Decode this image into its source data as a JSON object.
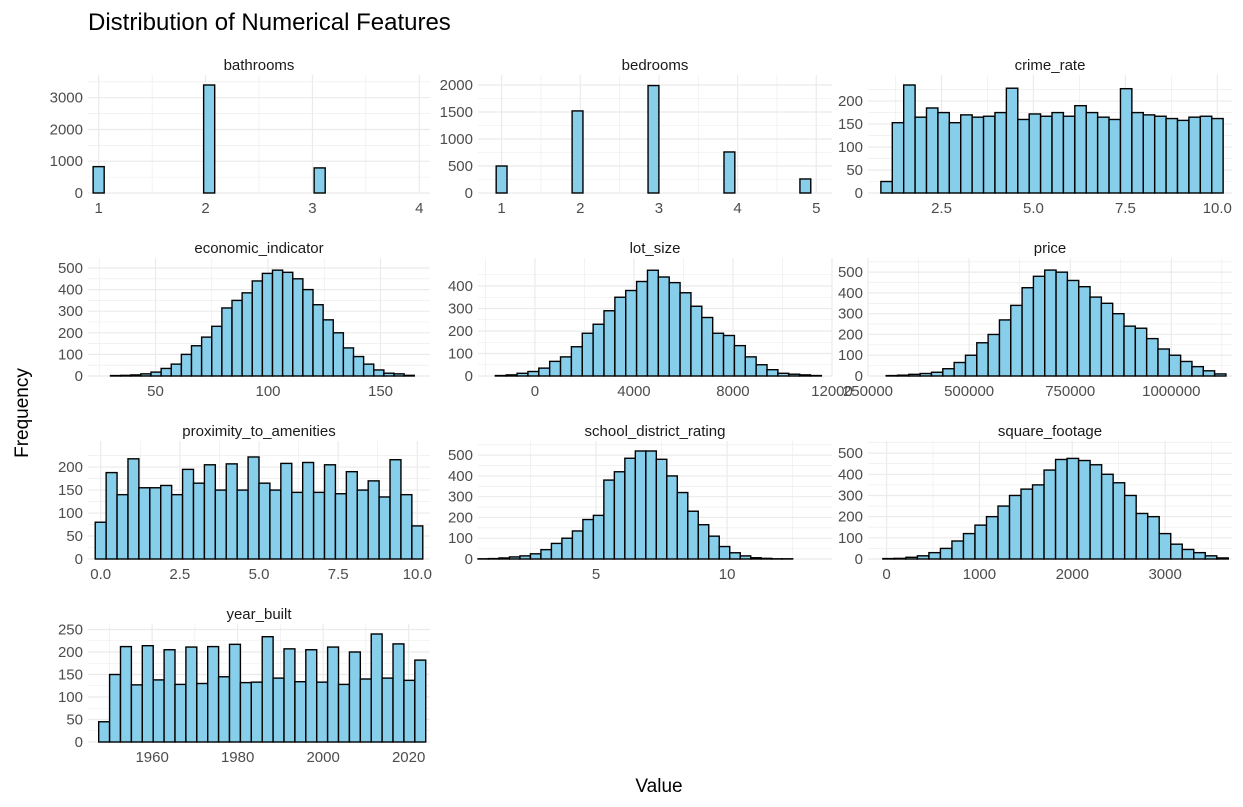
{
  "title": "Distribution of Numerical Features",
  "xlabel": "Value",
  "ylabel": "Frequency",
  "style": {
    "bar_fill": "#87CEEB",
    "bar_stroke": "#000000",
    "grid": "#ebebeb"
  },
  "chart_data": {
    "type": "bar",
    "subtype": "faceted-histogram",
    "grid": true,
    "bins_per_panel": 30,
    "panels": [
      {
        "name": "bathrooms",
        "xlim": [
          0.9,
          4.1
        ],
        "ylim": [
          0,
          3400
        ],
        "xticks": [
          1,
          2,
          3,
          4
        ],
        "xtick_labels": [
          "1",
          "2",
          "3",
          "4"
        ],
        "yticks": [
          0,
          1000,
          2000,
          3000
        ],
        "ytick_labels": [
          "0",
          "1000",
          "2000",
          "3000"
        ],
        "bin_start": 0.948,
        "bin_width": 0.1034,
        "counts": [
          830,
          0,
          0,
          0,
          0,
          0,
          0,
          0,
          0,
          0,
          3400,
          0,
          0,
          0,
          0,
          0,
          0,
          0,
          0,
          0,
          790,
          0,
          0,
          0,
          0,
          0,
          0,
          0,
          0,
          0
        ]
      },
      {
        "name": "bedrooms",
        "xlim": [
          0.7,
          5.2
        ],
        "ylim": [
          0,
          2000
        ],
        "xticks": [
          1,
          2,
          3,
          4,
          5
        ],
        "xtick_labels": [
          "1",
          "2",
          "3",
          "4",
          "5"
        ],
        "yticks": [
          0,
          500,
          1000,
          1500,
          2000
        ],
        "ytick_labels": [
          "0",
          "500",
          "1000",
          "1500",
          "2000"
        ],
        "bin_start": 0.931,
        "bin_width": 0.1379,
        "counts": [
          500,
          0,
          0,
          0,
          0,
          0,
          0,
          1520,
          0,
          0,
          0,
          0,
          0,
          0,
          1990,
          0,
          0,
          0,
          0,
          0,
          0,
          760,
          0,
          0,
          0,
          0,
          0,
          0,
          260,
          0
        ]
      },
      {
        "name": "crime_rate",
        "xlim": [
          0.5,
          10.4
        ],
        "ylim": [
          0,
          235
        ],
        "xticks": [
          2.5,
          5,
          7.5,
          10
        ],
        "xtick_labels": [
          "2.5",
          "5.0",
          "7.5",
          "10.0"
        ],
        "yticks": [
          0,
          50,
          100,
          150,
          200
        ],
        "ytick_labels": [
          "0",
          "50",
          "100",
          "150",
          "200"
        ],
        "bin_start": 0.85,
        "bin_width": 0.3103,
        "counts": [
          25,
          153,
          235,
          165,
          185,
          175,
          153,
          170,
          165,
          167,
          175,
          228,
          160,
          172,
          167,
          175,
          167,
          190,
          175,
          165,
          160,
          227,
          175,
          170,
          167,
          162,
          158,
          165,
          167,
          162
        ]
      },
      {
        "name": "economic_indicator",
        "xlim": [
          20,
          172
        ],
        "ylim": [
          0,
          500
        ],
        "xticks": [
          50,
          100,
          150
        ],
        "xtick_labels": [
          "50",
          "100",
          "150"
        ],
        "yticks": [
          0,
          100,
          200,
          300,
          400,
          500
        ],
        "ytick_labels": [
          "0",
          "100",
          "200",
          "300",
          "400",
          "500"
        ],
        "bin_start": 30,
        "bin_width": 4.5,
        "counts": [
          2,
          3,
          5,
          10,
          18,
          35,
          55,
          100,
          140,
          180,
          230,
          315,
          350,
          385,
          440,
          475,
          490,
          480,
          450,
          400,
          330,
          260,
          200,
          130,
          90,
          55,
          28,
          13,
          10,
          3
        ]
      },
      {
        "name": "lot_size",
        "xlim": [
          -2300,
          12000
        ],
        "ylim": [
          0,
          480
        ],
        "xticks": [
          0,
          4000,
          8000,
          12000
        ],
        "xtick_labels": [
          "0",
          "4000",
          "8000",
          "12000"
        ],
        "yticks": [
          0,
          100,
          200,
          300,
          400
        ],
        "ytick_labels": [
          "0",
          "100",
          "200",
          "300",
          "400"
        ],
        "bin_start": -1600,
        "bin_width": 439,
        "counts": [
          2,
          5,
          12,
          20,
          35,
          65,
          85,
          130,
          190,
          230,
          290,
          350,
          380,
          420,
          470,
          440,
          415,
          370,
          310,
          260,
          190,
          180,
          135,
          85,
          50,
          28,
          12,
          8,
          5,
          2
        ]
      },
      {
        "name": "price",
        "xlim": [
          250000,
          1150000
        ],
        "ylim": [
          0,
          520
        ],
        "xticks": [
          250000,
          500000,
          750000,
          1000000
        ],
        "xtick_labels": [
          "250000",
          "500000",
          "750000",
          "1000000"
        ],
        "yticks": [
          0,
          100,
          200,
          300,
          400,
          500
        ],
        "ytick_labels": [
          "0",
          "100",
          "200",
          "300",
          "400",
          "500"
        ],
        "bin_start": 295000,
        "bin_width": 28000,
        "counts": [
          2,
          4,
          8,
          12,
          18,
          35,
          65,
          100,
          160,
          200,
          270,
          340,
          425,
          480,
          510,
          500,
          460,
          430,
          380,
          350,
          300,
          240,
          230,
          180,
          130,
          100,
          70,
          45,
          25,
          10
        ]
      },
      {
        "name": "proximity_to_amenities",
        "xlim": [
          -0.4,
          10.4
        ],
        "ylim": [
          0,
          235
        ],
        "xticks": [
          0,
          2.5,
          5,
          7.5,
          10
        ],
        "xtick_labels": [
          "0.0",
          "2.5",
          "5.0",
          "7.5",
          "10.0"
        ],
        "yticks": [
          0,
          50,
          100,
          150,
          200
        ],
        "ytick_labels": [
          "0",
          "50",
          "100",
          "150",
          "200"
        ],
        "bin_start": -0.172,
        "bin_width": 0.3448,
        "counts": [
          80,
          188,
          140,
          218,
          155,
          155,
          160,
          140,
          195,
          165,
          205,
          150,
          207,
          150,
          222,
          165,
          150,
          208,
          145,
          210,
          145,
          205,
          142,
          190,
          150,
          170,
          135,
          216,
          140,
          72
        ]
      },
      {
        "name": "school_district_rating",
        "xlim": [
          0.5,
          14
        ],
        "ylim": [
          0,
          520
        ],
        "xticks": [
          5,
          10
        ],
        "xtick_labels": [
          "5",
          "10"
        ],
        "yticks": [
          0,
          100,
          200,
          300,
          400,
          500
        ],
        "ytick_labels": [
          "0",
          "100",
          "200",
          "300",
          "400",
          "500"
        ],
        "bin_start": 0.5,
        "bin_width": 0.4,
        "counts": [
          1,
          2,
          5,
          10,
          15,
          25,
          45,
          75,
          100,
          135,
          190,
          210,
          380,
          420,
          485,
          520,
          520,
          480,
          400,
          320,
          230,
          165,
          110,
          60,
          30,
          15,
          6,
          3,
          1,
          1
        ]
      },
      {
        "name": "square_footage",
        "xlim": [
          -200,
          3720
        ],
        "ylim": [
          0,
          510
        ],
        "xticks": [
          0,
          1000,
          2000,
          3000
        ],
        "xtick_labels": [
          "0",
          "1000",
          "2000",
          "3000"
        ],
        "yticks": [
          0,
          100,
          200,
          300,
          400,
          500
        ],
        "ytick_labels": [
          "0",
          "100",
          "200",
          "300",
          "400",
          "500"
        ],
        "bin_start": -40,
        "bin_width": 124,
        "counts": [
          2,
          3,
          8,
          15,
          30,
          50,
          85,
          120,
          160,
          200,
          250,
          300,
          330,
          350,
          420,
          470,
          475,
          465,
          445,
          400,
          360,
          300,
          215,
          200,
          120,
          70,
          45,
          30,
          15,
          5
        ]
      },
      {
        "name": "year_built",
        "xlim": [
          1945,
          2025
        ],
        "ylim": [
          0,
          240
        ],
        "xticks": [
          1960,
          1980,
          2000,
          2020
        ],
        "xtick_labels": [
          "1960",
          "1980",
          "2000",
          "2020"
        ],
        "yticks": [
          0,
          50,
          100,
          150,
          200,
          250
        ],
        "ytick_labels": [
          "0",
          "50",
          "100",
          "150",
          "200",
          "250"
        ],
        "bin_start": 1947.5,
        "bin_width": 2.55,
        "counts": [
          45,
          150,
          212,
          127,
          214,
          138,
          205,
          128,
          211,
          130,
          212,
          145,
          217,
          132,
          133,
          234,
          142,
          207,
          134,
          205,
          133,
          211,
          128,
          200,
          140,
          240,
          142,
          218,
          137,
          182
        ]
      }
    ]
  }
}
